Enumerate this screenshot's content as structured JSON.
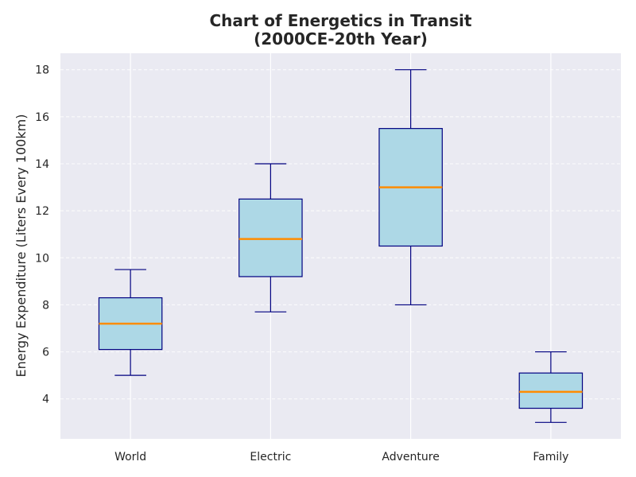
{
  "chart_data": {
    "type": "box",
    "title_lines": [
      "Chart of Energetics in Transit",
      "(2000CE-20th Year)"
    ],
    "xlabel": "",
    "ylabel": "Energy Expenditure (Liters Every 100km)",
    "categories": [
      "World",
      "Electric",
      "Adventure",
      "Family"
    ],
    "boxes": [
      {
        "category": "World",
        "min": 5.0,
        "q1": 6.1,
        "median": 7.2,
        "q3": 8.3,
        "max": 9.5
      },
      {
        "category": "Electric",
        "min": 7.7,
        "q1": 9.2,
        "median": 10.8,
        "q3": 12.5,
        "max": 14.0
      },
      {
        "category": "Adventure",
        "min": 8.0,
        "q1": 10.5,
        "median": 13.0,
        "q3": 15.5,
        "max": 18.0
      },
      {
        "category": "Family",
        "min": 3.0,
        "q1": 3.6,
        "median": 4.3,
        "q3": 5.1,
        "max": 6.0
      }
    ],
    "yticks": [
      4,
      6,
      8,
      10,
      12,
      14,
      16,
      18
    ],
    "ylim": [
      2.3,
      18.7
    ],
    "grid": true,
    "colors": {
      "plot_background": "#EAEAF2",
      "box_fill": "#ADD8E6",
      "box_edge": "#000080",
      "median": "#FF8C00",
      "grid": "#FFFFFF"
    }
  }
}
